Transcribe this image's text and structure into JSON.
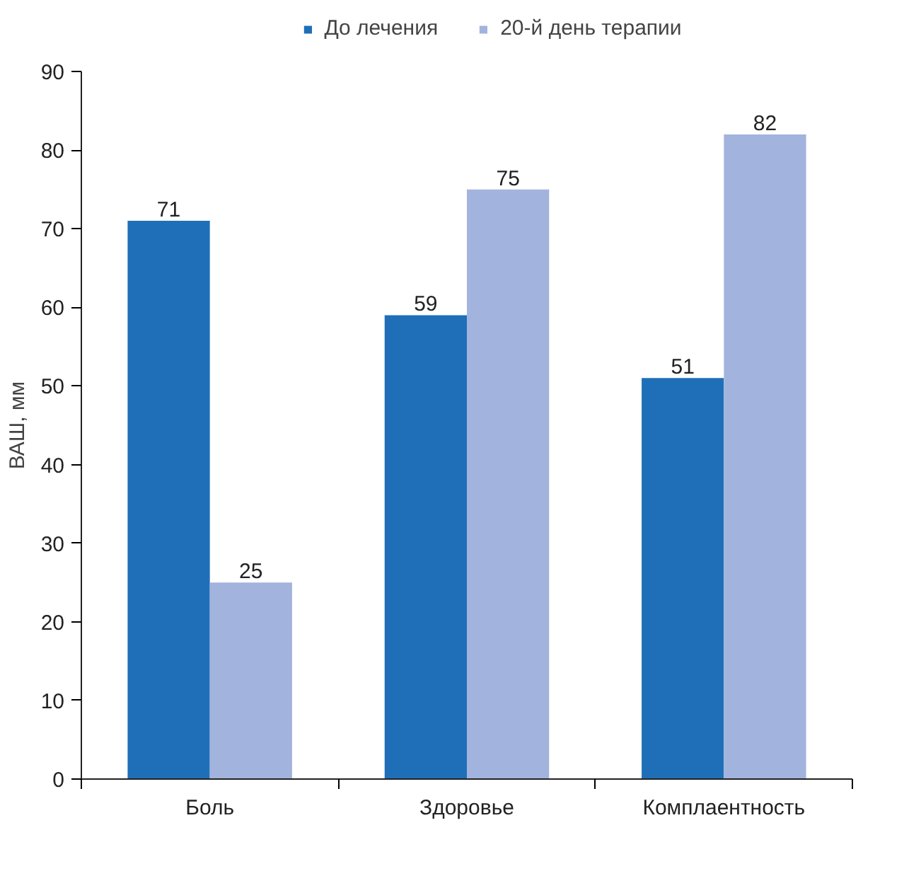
{
  "chart_data": {
    "type": "bar",
    "ylabel": "ВАШ, мм",
    "categories": [
      "Боль",
      "Здоровье",
      "Комплаентность"
    ],
    "series": [
      {
        "name": "До лечения",
        "color": "#1f6fb8",
        "values": [
          71,
          59,
          51
        ]
      },
      {
        "name": "20-й день терапии",
        "color": "#a2b4dd",
        "values": [
          25,
          75,
          82
        ]
      }
    ],
    "ylim": [
      0,
      90
    ],
    "yticks": [
      0,
      10,
      20,
      30,
      40,
      50,
      60,
      70,
      80,
      90
    ],
    "grid": false,
    "legend": "top",
    "data_labels": true
  }
}
